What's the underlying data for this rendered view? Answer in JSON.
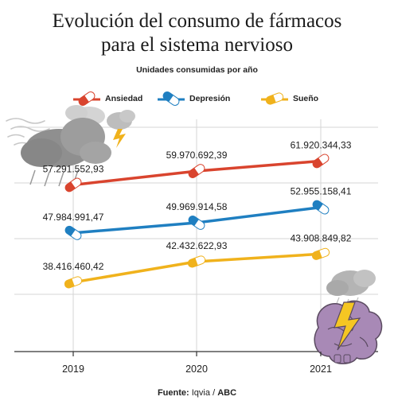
{
  "title_line1": "Evolución del consumo de fármacos",
  "title_line2": "para el sistema nervioso",
  "subtitle": "Unidades consumidas por año",
  "source": {
    "label": "Fuente:",
    "value": "Iqvia",
    "sep": "/",
    "brand": "ABC"
  },
  "colors": {
    "ansiedad": "#d9442e",
    "depresion": "#1f7fc1",
    "sueno": "#f0b21c",
    "grid": "#d6d6d6"
  },
  "chart_data": {
    "type": "line",
    "categories": [
      "2019",
      "2020",
      "2021"
    ],
    "series": [
      {
        "name": "Ansiedad",
        "key": "ansiedad",
        "values": [
          57291552.93,
          59970692.39,
          61920344.33
        ],
        "labels": [
          "57.291.552,93",
          "59.970.692,39",
          "61.920.344,33"
        ]
      },
      {
        "name": "Depresión",
        "key": "depresion",
        "values": [
          47984991.47,
          49969914.58,
          52955158.41
        ],
        "labels": [
          "47.984.991,47",
          "49.969.914,58",
          "52.955.158,41"
        ]
      },
      {
        "name": "Sueño",
        "key": "sueno",
        "values": [
          38416460.42,
          42432622.93,
          43908849.82
        ],
        "labels": [
          "38.416.460,42",
          "42.432.622,93",
          "43.908.849,82"
        ]
      }
    ],
    "ylim": [
      25000000,
      70000000
    ],
    "grid": true,
    "legend_position": "top"
  },
  "icons": [
    "rain-cloud-icon",
    "storm-cloud-icon",
    "brain-lightning-icon",
    "pill-icon"
  ]
}
